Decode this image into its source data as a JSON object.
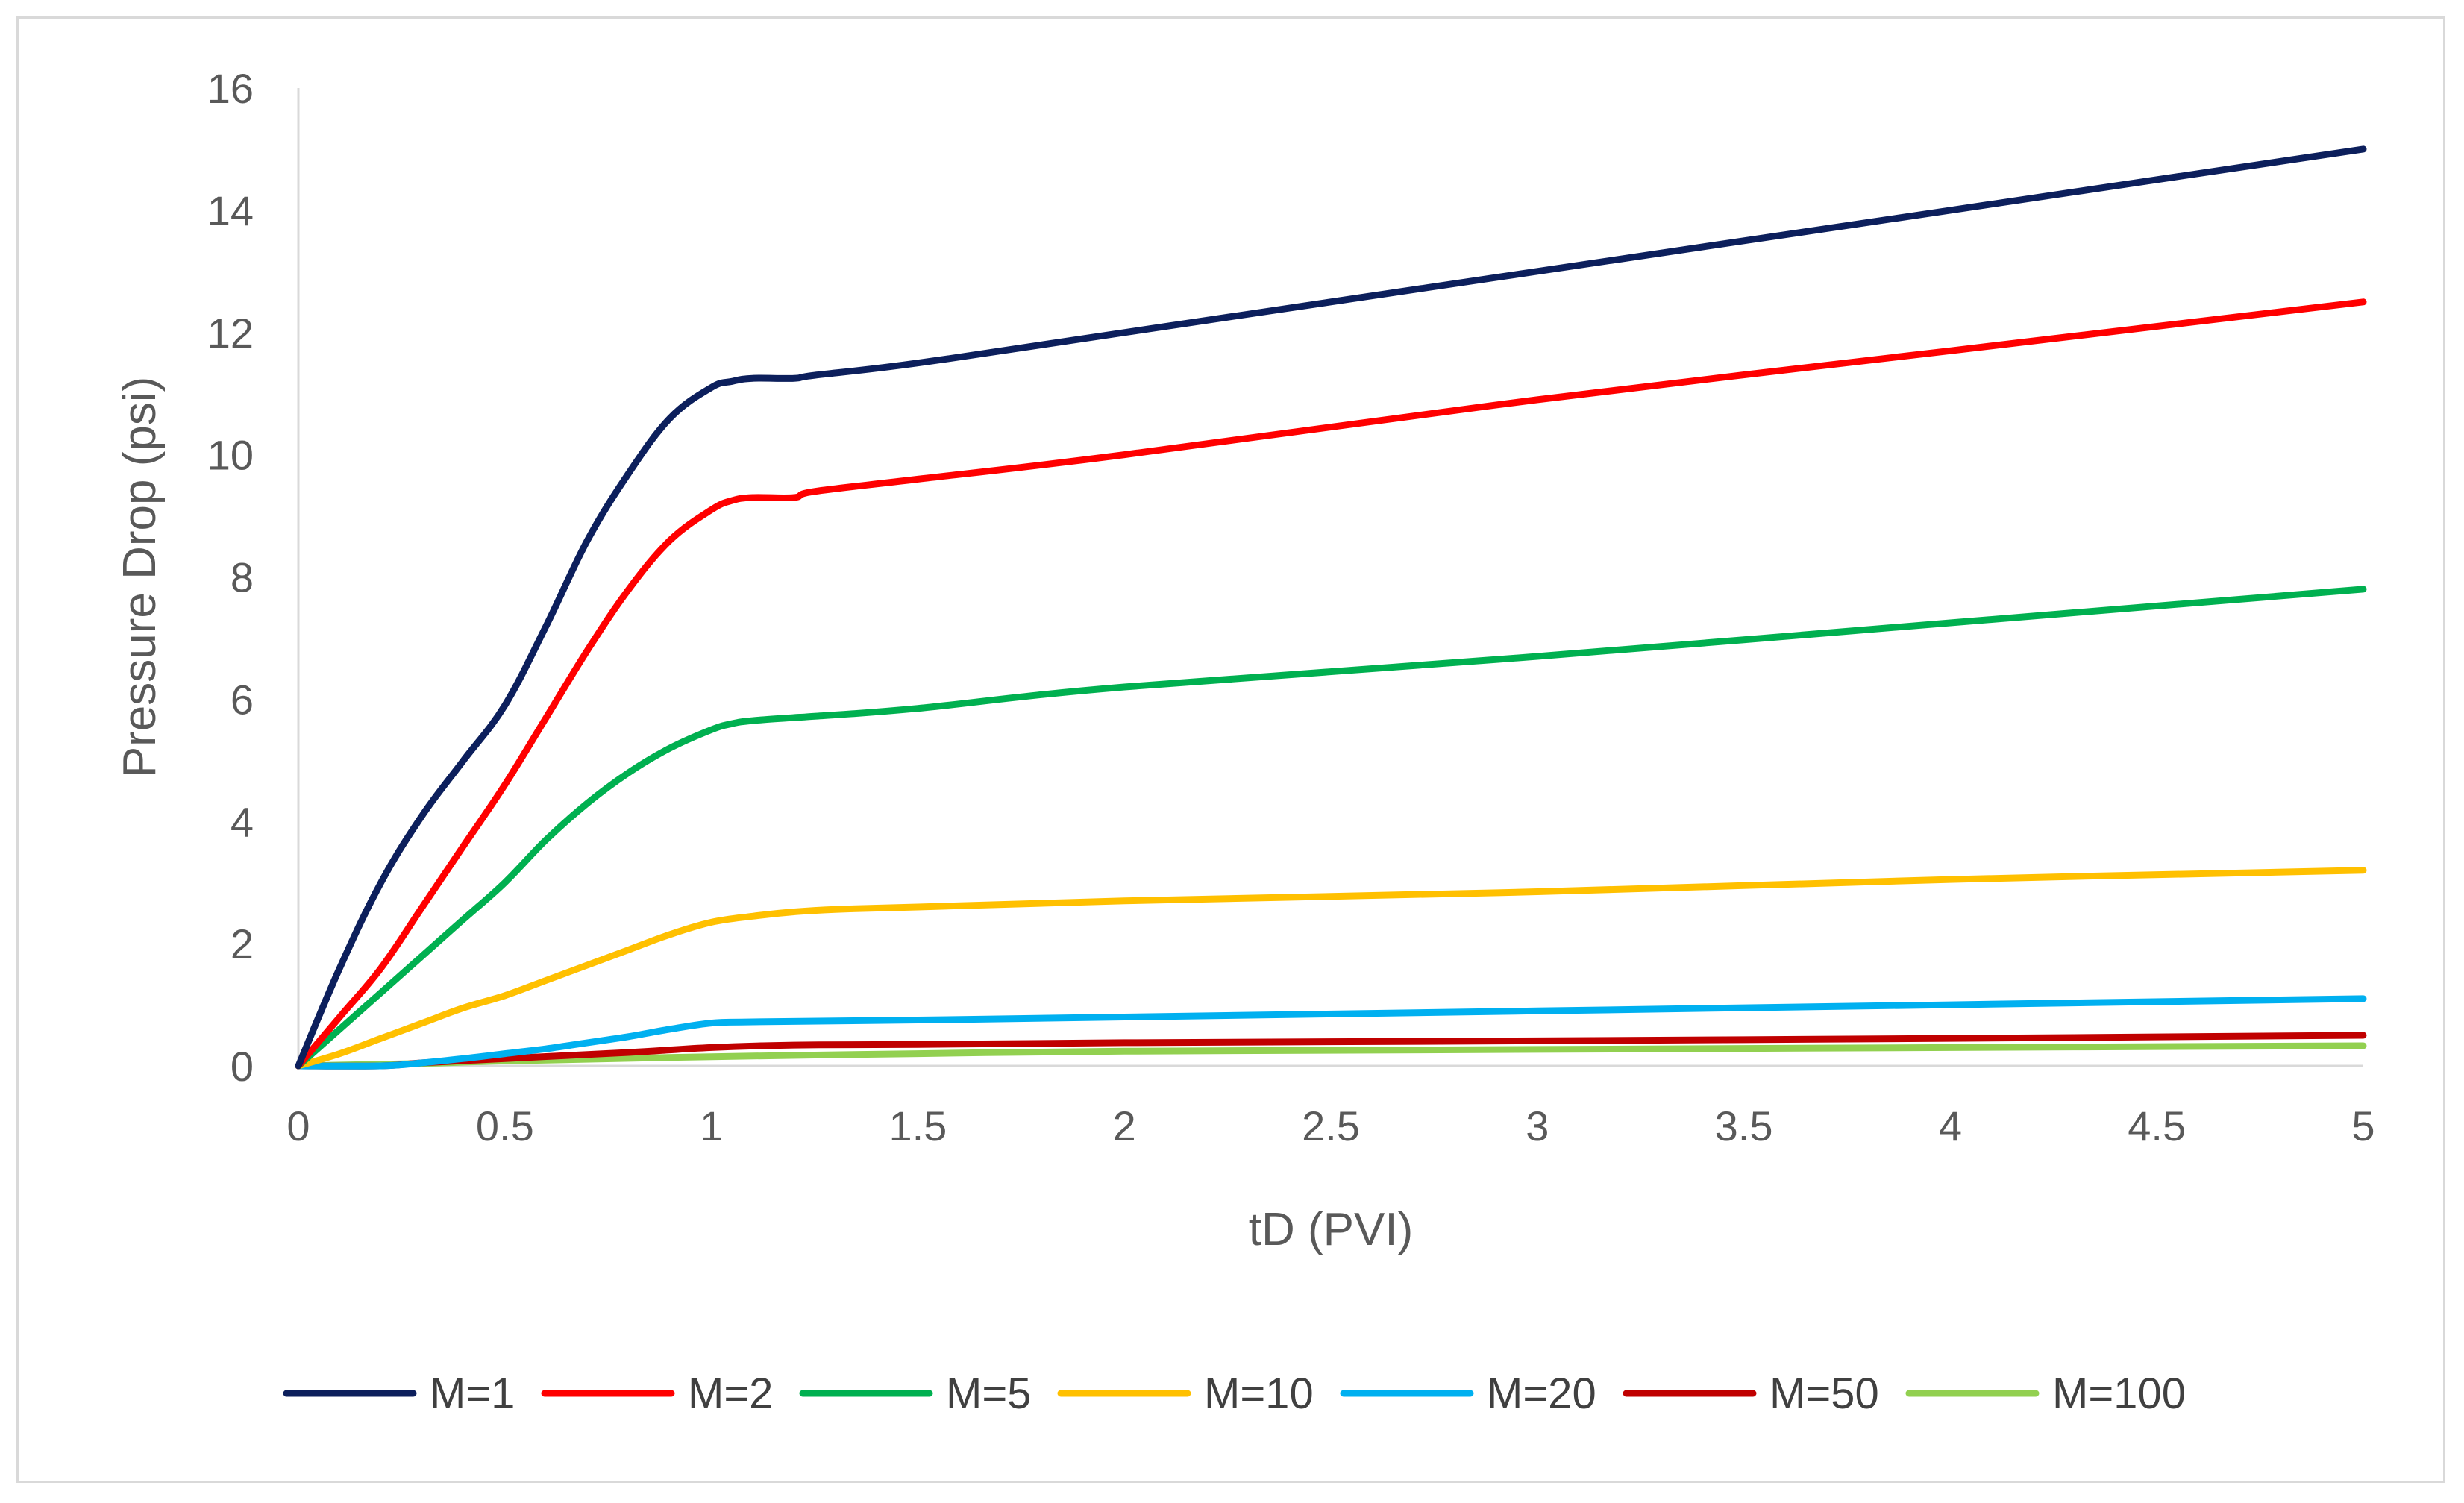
{
  "chart_data": {
    "type": "line",
    "title": "",
    "xlabel": "tD (PVI)",
    "ylabel": "Pressure Drop (psi)",
    "xlim": [
      0,
      5
    ],
    "ylim": [
      0,
      16
    ],
    "xticks": [
      0,
      0.5,
      1,
      1.5,
      2,
      2.5,
      3,
      3.5,
      4,
      4.5,
      5
    ],
    "xtick_labels": [
      "0",
      "0.5",
      "1",
      "1.5",
      "2",
      "2.5",
      "3",
      "3.5",
      "4",
      "4.5",
      "5"
    ],
    "yticks": [
      0,
      2,
      4,
      6,
      8,
      10,
      12,
      14,
      16
    ],
    "ytick_labels": [
      "0",
      "2",
      "4",
      "6",
      "8",
      "10",
      "12",
      "14",
      "16"
    ],
    "grid": false,
    "legend_position": "bottom",
    "series": [
      {
        "name": "M=1",
        "color": "#0c1f5c",
        "x": [
          0,
          0.1,
          0.2,
          0.3,
          0.4,
          0.5,
          0.6,
          0.7,
          0.8,
          0.9,
          1.0,
          1.05,
          1.1,
          1.2,
          1.25,
          1.5,
          2,
          3,
          4,
          5
        ],
        "y": [
          0,
          1.6,
          3.0,
          4.1,
          5.0,
          5.9,
          7.2,
          8.6,
          9.7,
          10.6,
          11.1,
          11.2,
          11.25,
          11.25,
          11.3,
          11.5,
          12.0,
          13.0,
          14.0,
          15.0
        ]
      },
      {
        "name": "M=2",
        "color": "#ff0000",
        "x": [
          0,
          0.1,
          0.2,
          0.3,
          0.4,
          0.5,
          0.6,
          0.7,
          0.8,
          0.9,
          1.0,
          1.05,
          1.1,
          1.2,
          1.25,
          1.5,
          2,
          3,
          4,
          5
        ],
        "y": [
          0,
          0.8,
          1.6,
          2.6,
          3.6,
          4.6,
          5.7,
          6.8,
          7.8,
          8.6,
          9.1,
          9.25,
          9.3,
          9.3,
          9.4,
          9.6,
          10.0,
          10.9,
          11.7,
          12.5
        ]
      },
      {
        "name": "M=5",
        "color": "#00b050",
        "x": [
          0,
          0.1,
          0.2,
          0.3,
          0.4,
          0.5,
          0.6,
          0.7,
          0.8,
          0.9,
          1.0,
          1.05,
          1.1,
          1.2,
          1.25,
          1.5,
          2,
          3,
          4,
          5
        ],
        "y": [
          0,
          0.6,
          1.2,
          1.8,
          2.4,
          3.0,
          3.7,
          4.3,
          4.8,
          5.2,
          5.5,
          5.6,
          5.65,
          5.7,
          5.72,
          5.85,
          6.2,
          6.7,
          7.25,
          7.8
        ]
      },
      {
        "name": "M=10",
        "color": "#ffc000",
        "x": [
          0,
          0.1,
          0.2,
          0.3,
          0.4,
          0.5,
          0.6,
          0.7,
          0.8,
          0.9,
          1.0,
          1.1,
          1.2,
          1.3,
          1.5,
          2,
          3,
          4,
          5
        ],
        "y": [
          0,
          0.2,
          0.45,
          0.7,
          0.95,
          1.15,
          1.4,
          1.65,
          1.9,
          2.15,
          2.35,
          2.45,
          2.52,
          2.56,
          2.6,
          2.7,
          2.85,
          3.05,
          3.2
        ]
      },
      {
        "name": "M=20",
        "color": "#00b0f0",
        "x": [
          0,
          0.2,
          0.3,
          0.4,
          0.5,
          0.6,
          0.7,
          0.8,
          0.9,
          1.0,
          1.1,
          1.5,
          2,
          3,
          4,
          5
        ],
        "y": [
          0,
          0.0,
          0.05,
          0.12,
          0.2,
          0.28,
          0.38,
          0.48,
          0.6,
          0.7,
          0.72,
          0.75,
          0.8,
          0.9,
          1.0,
          1.1
        ]
      },
      {
        "name": "M=50",
        "color": "#c00000",
        "x": [
          0,
          0.2,
          0.3,
          0.5,
          0.8,
          1.0,
          1.2,
          1.5,
          2,
          3,
          4,
          5
        ],
        "y": [
          0,
          0.0,
          0.05,
          0.12,
          0.22,
          0.3,
          0.34,
          0.35,
          0.38,
          0.41,
          0.45,
          0.5
        ]
      },
      {
        "name": "M=100",
        "color": "#92d050",
        "x": [
          0,
          0.3,
          0.5,
          1.0,
          1.5,
          2,
          3,
          4,
          5
        ],
        "y": [
          0,
          0.04,
          0.08,
          0.15,
          0.2,
          0.24,
          0.27,
          0.3,
          0.33
        ]
      }
    ]
  }
}
